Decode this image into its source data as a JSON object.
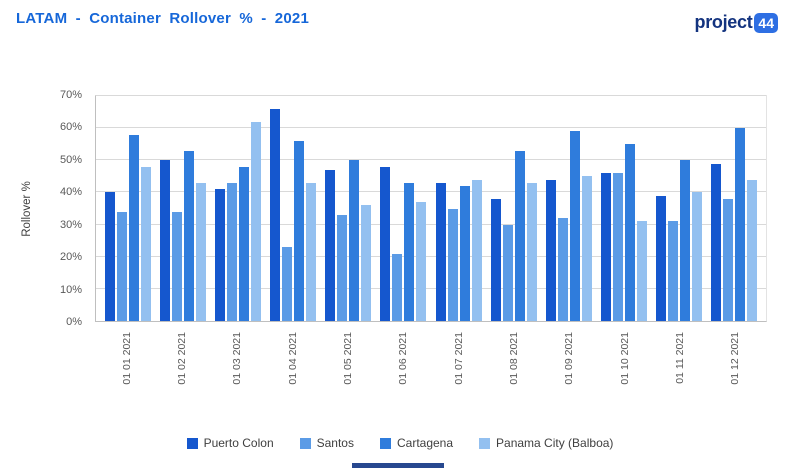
{
  "header": {
    "title": "LATAM - Container Rollover % - 2021",
    "logo": {
      "text": "project",
      "badge": "44"
    }
  },
  "chart_data": {
    "type": "bar",
    "title": "LATAM - Container Rollover % - 2021",
    "xlabel": "",
    "ylabel": "Rollover %",
    "ylim": [
      0,
      70
    ],
    "ytick_step": 10,
    "ytick_suffix": "%",
    "grid": true,
    "legend_position": "bottom",
    "categories": [
      "01 01 2021",
      "01 02 2021",
      "01 03 2021",
      "01 04 2021",
      "01 05 2021",
      "01 06 2021",
      "01 07 2021",
      "01 08 2021",
      "01 09 2021",
      "01 10 2021",
      "01 11 2021",
      "01 12 2021"
    ],
    "series": [
      {
        "name": "Puerto Colon",
        "color": "#1557CE",
        "values": [
          40,
          50,
          41,
          66,
          47,
          48,
          43,
          38,
          44,
          46,
          39,
          49
        ]
      },
      {
        "name": "Santos",
        "color": "#5B9BE6",
        "values": [
          34,
          34,
          43,
          23,
          33,
          21,
          35,
          30,
          32,
          46,
          31,
          38
        ]
      },
      {
        "name": "Cartagena",
        "color": "#2F7CDC",
        "values": [
          58,
          53,
          48,
          56,
          50,
          43,
          42,
          53,
          59,
          55,
          50,
          60
        ]
      },
      {
        "name": "Panama City (Balboa)",
        "color": "#93C0F0",
        "values": [
          48,
          43,
          62,
          43,
          36,
          37,
          44,
          43,
          45,
          31,
          40,
          44
        ]
      }
    ]
  }
}
